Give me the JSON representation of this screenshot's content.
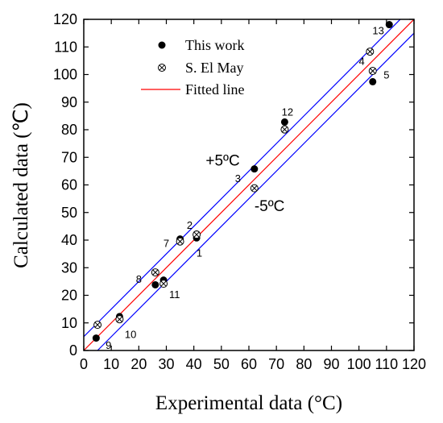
{
  "chart_data": {
    "type": "scatter",
    "xlabel": "Experimental data (°C)",
    "ylabel": "Calculated data (℃)",
    "xlim": [
      0,
      120
    ],
    "ylim": [
      0,
      120
    ],
    "xticks": [
      0,
      10,
      20,
      30,
      40,
      50,
      60,
      70,
      80,
      90,
      100,
      110,
      120
    ],
    "yticks": [
      0,
      10,
      20,
      30,
      40,
      50,
      60,
      70,
      80,
      90,
      100,
      110,
      120
    ],
    "grid": false,
    "legend_position": "top-left",
    "legend": [
      {
        "label": "This work",
        "marker": "filled-circle"
      },
      {
        "label": "S. El May",
        "marker": "crossed-circle"
      },
      {
        "label": "Fitted line",
        "marker": "line"
      }
    ],
    "series": [
      {
        "name": "This work",
        "points": [
          {
            "x": 4.5,
            "y": 4.5
          },
          {
            "x": 13,
            "y": 12.3
          },
          {
            "x": 26,
            "y": 23.8
          },
          {
            "x": 29,
            "y": 25.5
          },
          {
            "x": 35,
            "y": 40.4
          },
          {
            "x": 41,
            "y": 40.8
          },
          {
            "x": 41,
            "y": 42.2
          },
          {
            "x": 62,
            "y": 65.8
          },
          {
            "x": 73,
            "y": 82.8
          },
          {
            "x": 104,
            "y": 108.2
          },
          {
            "x": 105,
            "y": 97.4
          },
          {
            "x": 111,
            "y": 118.1
          }
        ]
      },
      {
        "name": "S. El May",
        "points": [
          {
            "x": 5,
            "y": 9.3
          },
          {
            "x": 13,
            "y": 11.3
          },
          {
            "x": 26,
            "y": 28.3
          },
          {
            "x": 29,
            "y": 24.2
          },
          {
            "x": 35,
            "y": 39.5
          },
          {
            "x": 41,
            "y": 42.0
          },
          {
            "x": 62,
            "y": 58.8
          },
          {
            "x": 73,
            "y": 80.1
          },
          {
            "x": 104,
            "y": 108.3
          },
          {
            "x": 105,
            "y": 101.3
          }
        ]
      }
    ],
    "lines": [
      {
        "name": "Fitted line",
        "color": "#ff0000",
        "slope": 1,
        "intercept": 0
      },
      {
        "color": "#0000ff",
        "slope": 1,
        "intercept": 5
      },
      {
        "color": "#0000ff",
        "slope": 1,
        "intercept": -5
      }
    ],
    "point_labels": [
      {
        "text": "1",
        "x": 42,
        "y": 35.5
      },
      {
        "text": "2",
        "x": 38.5,
        "y": 45.5
      },
      {
        "text": "3",
        "x": 56,
        "y": 62.5
      },
      {
        "text": "4",
        "x": 101,
        "y": 105
      },
      {
        "text": "5",
        "x": 110,
        "y": 100
      },
      {
        "text": "7",
        "x": 30,
        "y": 39
      },
      {
        "text": "8",
        "x": 20,
        "y": 26
      },
      {
        "text": "9",
        "x": 9,
        "y": 2
      },
      {
        "text": "10",
        "x": 17,
        "y": 6
      },
      {
        "text": "11",
        "x": 33,
        "y": 20.5
      },
      {
        "text": "12",
        "x": 74,
        "y": 86.5
      },
      {
        "text": "13",
        "x": 107,
        "y": 116
      }
    ],
    "band_labels": [
      {
        "text": "+5ºC",
        "x": 50.5,
        "y": 69
      },
      {
        "text": "-5ºC",
        "x": 67.5,
        "y": 52.5
      }
    ]
  }
}
